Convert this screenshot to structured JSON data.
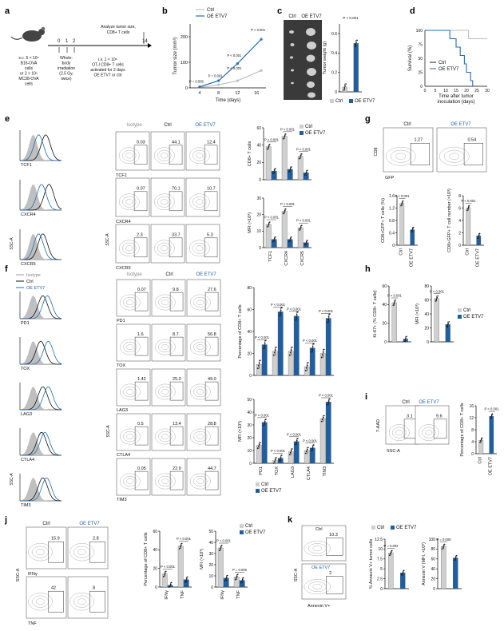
{
  "colors": {
    "ctrl_bar": "#cfcfcf",
    "oe_bar": "#1e5fa3",
    "oe_text": "#2464a8",
    "ctrl_line": "#bdbdbd",
    "oe_line": "#1e6fb8",
    "isotype": "#bfbfbf"
  },
  "icons": {
    "mouse": "mouse-icon",
    "tumor_photo": "tumor-photo",
    "flow_plot": "flow-density-plot"
  },
  "legend": {
    "ctrl": "Ctrl",
    "oe": "OE ETV7",
    "isotype": "Isotype"
  },
  "panels": {
    "a": {
      "label": "a",
      "day0": "0",
      "day1": "1",
      "day2": "2",
      "day14": "14",
      "analyze": [
        "Analyze tumor size,",
        "CD8+ T cells"
      ],
      "sc": [
        "s.c. 5 × 10⁵",
        "B16-OVA",
        "cells",
        "or 2 × 10⁶",
        "MC38-OVA",
        "cells"
      ],
      "irr": [
        "Whole-",
        "body",
        "irradiation",
        "(2.5 Gy,",
        "twice)"
      ],
      "iv": [
        "i.v. 1 × 10⁶",
        "OT-I CD8+ T cells",
        "activated for 2 days",
        "OE ETV7 or ctrl"
      ]
    },
    "b": {
      "label": "b",
      "p_texts": [
        "P = 0.556",
        "P = 0.001",
        "P < 0.001",
        "P < 0.001",
        "P < 0.001"
      ]
    },
    "c": {
      "label": "c",
      "photo_ctrl": "Ctrl",
      "photo_oe": "OE ETV7",
      "p": "P < 0.001"
    },
    "d": {
      "label": "d",
      "ylabel": "Survival (%)",
      "xlabel": [
        "Time after tumor",
        "inoculation (days)"
      ]
    },
    "e": {
      "label": "e",
      "hist_labels": [
        "TCF1",
        "CXCR4",
        "CXCR5"
      ],
      "yaxis": "SSC-A",
      "p": "P < 0.001"
    },
    "f": {
      "label": "f",
      "hist_labels": [
        "PD1",
        "TOX",
        "LAG3",
        "CTLA4",
        "TIM3"
      ],
      "yaxis": "SSC-A",
      "p": "P < 0.001"
    },
    "g": {
      "label": "g",
      "gate_ctrl": "1.27",
      "gate_oe": "0.54",
      "xaxis": "GFP",
      "yaxis": "CD8",
      "p": "P < 0.001"
    },
    "h": {
      "label": "h",
      "p": "P < 0.001"
    },
    "i": {
      "label": "i",
      "gate_ctrl": "3.1",
      "gate_oe": "9.6",
      "xaxis": "SSC-A",
      "yaxis": "7-AAD",
      "p": "P < 0.001"
    },
    "j": {
      "label": "j",
      "yaxis": "SSC-A",
      "row_labels": [
        "IFNγ",
        "TNF"
      ],
      "values": [
        [
          "15.9",
          "2.8"
        ],
        [
          "42",
          "8"
        ]
      ],
      "p": "P < 0.001",
      "p_alt": "P = 0.006"
    },
    "k": {
      "label": "k",
      "gate_ctrl": "10.3",
      "gate_oe": "2",
      "xaxis": "Annexin V+",
      "yaxis": "SSC-A",
      "p1": "P = 0.002",
      "p2": "P = 0.005"
    }
  },
  "chart_data": [
    {
      "id": "b",
      "type": "line",
      "xlabel": "Time (days)",
      "ylabel": "Tumor size (mm³)",
      "x": [
        4,
        8,
        12,
        17
      ],
      "ylim": [
        0,
        250
      ],
      "yticks": [
        0,
        100,
        200
      ],
      "xticks": [
        4,
        8,
        12,
        16
      ],
      "series": [
        {
          "name": "Ctrl",
          "values": [
            2,
            12,
            28,
            68
          ]
        },
        {
          "name": "OE ETV7",
          "values": [
            4,
            28,
            95,
            190
          ]
        }
      ]
    },
    {
      "id": "c",
      "type": "bar",
      "ylabel": "Tumor weight (g)",
      "categories": [
        "Ctrl",
        "OE ETV7"
      ],
      "values": [
        0.05,
        0.5
      ],
      "ylim": [
        0,
        0.7
      ],
      "yticks": [
        0,
        0.2,
        0.4,
        0.6
      ]
    },
    {
      "id": "d",
      "type": "line",
      "ylabel": "Survival (%)",
      "xticks": [
        0,
        5,
        10,
        15,
        20,
        25,
        30
      ],
      "yticks": [
        0,
        25,
        50,
        75,
        100
      ],
      "ylim": [
        0,
        100
      ],
      "series": [
        {
          "name": "Ctrl",
          "steps": [
            [
              0,
              100
            ],
            [
              21,
              100
            ],
            [
              21,
              85
            ],
            [
              30,
              85
            ]
          ]
        },
        {
          "name": "OE ETV7",
          "steps": [
            [
              0,
              100
            ],
            [
              12,
              100
            ],
            [
              12,
              85
            ],
            [
              15,
              85
            ],
            [
              15,
              70
            ],
            [
              17,
              70
            ],
            [
              17,
              55
            ],
            [
              19,
              55
            ],
            [
              19,
              40
            ],
            [
              20,
              40
            ],
            [
              20,
              25
            ],
            [
              22,
              25
            ],
            [
              22,
              10
            ],
            [
              23,
              10
            ],
            [
              23,
              0
            ]
          ]
        }
      ]
    },
    {
      "id": "e_flow",
      "type": "table",
      "rows": [
        "TCF1",
        "CXCR4",
        "CXCR5"
      ],
      "columns": [
        "Isotype",
        "Ctrl",
        "OE ETV7"
      ],
      "values": [
        [
          "0.03",
          "44.1",
          "12.4"
        ],
        [
          "0.07",
          "70.1",
          "10.7"
        ],
        [
          "2.3",
          "33.7",
          "5.3"
        ]
      ]
    },
    {
      "id": "e_pct",
      "type": "bar",
      "ylabel": "CD8+ T cells",
      "categories": [
        "TCF1",
        "CXCR4",
        "CXCR5"
      ],
      "ylim": [
        0,
        60
      ],
      "yticks": [
        0,
        20,
        40,
        60
      ],
      "series": [
        {
          "name": "Ctrl",
          "values": [
            38,
            50,
            27
          ]
        },
        {
          "name": "OE ETV7",
          "values": [
            10,
            12,
            8
          ]
        }
      ]
    },
    {
      "id": "e_mfi",
      "type": "bar",
      "ylabel": "MFI (×10³)",
      "categories": [
        "TCF1",
        "CXCR4",
        "CXCR5"
      ],
      "ylim": [
        0,
        30
      ],
      "yticks": [
        0,
        10,
        20,
        30
      ],
      "series": [
        {
          "name": "Ctrl",
          "values": [
            14,
            22,
            12
          ]
        },
        {
          "name": "OE ETV7",
          "values": [
            5,
            5,
            3
          ]
        }
      ]
    },
    {
      "id": "f_flow",
      "type": "table",
      "rows": [
        "PD1",
        "TOX",
        "LAG3",
        "CTLA4",
        "TIM3"
      ],
      "columns": [
        "Isotype",
        "Ctrl",
        "OE ETV7"
      ],
      "values": [
        [
          "0.07",
          "9.8",
          "27.6"
        ],
        [
          "1.6",
          "8.7",
          "56.8"
        ],
        [
          "1.42",
          "25.0",
          "49.0"
        ],
        [
          "0.5",
          "13.4",
          "28.8"
        ],
        [
          "0.05",
          "22.9",
          "44.7"
        ]
      ]
    },
    {
      "id": "f_pct",
      "type": "bar",
      "ylabel": "Percentage of CD8+ T cells",
      "categories": [
        "PD1",
        "TOX",
        "LAG3",
        "CTLA4",
        "TIM3"
      ],
      "ylim": [
        0,
        80
      ],
      "yticks": [
        0,
        20,
        40,
        60,
        80
      ],
      "series": [
        {
          "name": "Ctrl",
          "values": [
            10,
            22,
            22,
            8,
            20
          ]
        },
        {
          "name": "OE ETV7",
          "values": [
            28,
            58,
            54,
            25,
            52
          ]
        }
      ]
    },
    {
      "id": "f_mfi",
      "type": "bar",
      "ylabel": "MFI (×10³)",
      "categories": [
        "PD1",
        "TOX",
        "LAG3",
        "CTLA4",
        "TIM3"
      ],
      "ylim": [
        0,
        50
      ],
      "yticks": [
        0,
        10,
        20,
        30,
        40,
        50
      ],
      "series": [
        {
          "name": "Ctrl",
          "values": [
            14,
            2,
            9,
            10,
            35
          ]
        },
        {
          "name": "OE ETV7",
          "values": [
            32,
            4,
            17,
            12,
            48
          ]
        }
      ]
    },
    {
      "id": "g_pct",
      "type": "bar",
      "ylabel": "CD8+GFP+ T cells (%)",
      "categories": [
        "Ctrl",
        "OE ETV7"
      ],
      "values": [
        1.35,
        0.5
      ],
      "ylim": [
        0,
        1.6
      ],
      "yticks": [
        0,
        0.4,
        0.8,
        1.2,
        1.6
      ]
    },
    {
      "id": "g_num",
      "type": "bar",
      "ylabel": "CD8+GFP+ T cell number (×10³)",
      "categories": [
        "Ctrl",
        "OE ETV7"
      ],
      "values": [
        6,
        1.5
      ],
      "ylim": [
        0,
        8
      ],
      "yticks": [
        0,
        2,
        4,
        6,
        8
      ]
    },
    {
      "id": "h",
      "type": "bar",
      "categories": [
        "Ki-67+ (% CD8+ T cells)",
        "MFI (×10³)"
      ],
      "ylim": [
        0,
        60
      ],
      "series": [
        {
          "name": "Ctrl",
          "values": [
            42,
            62
          ]
        },
        {
          "name": "OE ETV7",
          "values": [
            3,
            25
          ]
        }
      ]
    },
    {
      "id": "i",
      "type": "bar",
      "ylabel": "Percentage of CD8+ T cells",
      "categories": [
        "Ctrl",
        "OE ETV7"
      ],
      "values": [
        4.5,
        12.5
      ],
      "ylim": [
        0,
        16
      ],
      "yticks": [
        0,
        4,
        8,
        12,
        16
      ]
    },
    {
      "id": "j_pct",
      "type": "bar",
      "ylabel": "Percentage of CD8+ T cells",
      "categories": [
        "IFNγ",
        "TNF"
      ],
      "ylim": [
        0,
        60
      ],
      "yticks": [
        0,
        20,
        40,
        60
      ],
      "series": [
        {
          "name": "Ctrl",
          "values": [
            14,
            44
          ]
        },
        {
          "name": "OE ETV7",
          "values": [
            2,
            8
          ]
        }
      ]
    },
    {
      "id": "j_mfi",
      "type": "bar",
      "ylabel": "MFI (×10³)",
      "categories": [
        "IFNγ",
        "TNF"
      ],
      "ylim": [
        0,
        50
      ],
      "yticks": [
        0,
        10,
        20,
        30,
        40,
        50
      ],
      "series": [
        {
          "name": "Ctrl",
          "values": [
            35,
            9
          ]
        },
        {
          "name": "OE ETV7",
          "values": [
            8,
            6
          ]
        }
      ]
    },
    {
      "id": "k_pct",
      "type": "bar",
      "ylabel": "% Annexin V+ tumor cells",
      "categories": [
        "Ctrl",
        "OE ETV7"
      ],
      "values": [
        9,
        4
      ],
      "ylim": [
        0,
        12.5
      ],
      "yticks": [
        0,
        2.5,
        5,
        7.5,
        10,
        12.5
      ]
    },
    {
      "id": "k_mfi",
      "type": "bar",
      "ylabel": "Annexin V (MFI, ×10³)",
      "categories": [
        "Ctrl",
        "OE ETV7"
      ],
      "values": [
        85,
        62
      ],
      "ylim": [
        0,
        100
      ],
      "yticks": [
        0,
        20,
        40,
        60,
        80,
        100
      ]
    }
  ]
}
